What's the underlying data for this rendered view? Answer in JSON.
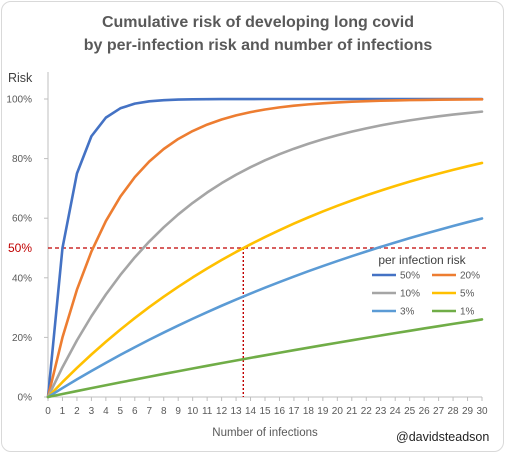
{
  "chart_data": {
    "type": "line",
    "title_lines": [
      "Cumulative risk of developing long covid",
      "by per-infection risk and number of infections"
    ],
    "xlabel": "Number of infections",
    "ylabel": "Risk",
    "x": [
      0,
      1,
      2,
      3,
      4,
      5,
      6,
      7,
      8,
      9,
      10,
      11,
      12,
      13,
      14,
      15,
      16,
      17,
      18,
      19,
      20,
      21,
      22,
      23,
      24,
      25,
      26,
      27,
      28,
      29,
      30
    ],
    "xlim": [
      0,
      30
    ],
    "ylim": [
      0,
      100
    ],
    "x_ticks": [
      "0",
      "1",
      "2",
      "3",
      "4",
      "5",
      "6",
      "7",
      "8",
      "9",
      "10",
      "11",
      "12",
      "13",
      "14",
      "15",
      "16",
      "17",
      "18",
      "19",
      "20",
      "21",
      "22",
      "23",
      "24",
      "25",
      "26",
      "27",
      "28",
      "29",
      "30"
    ],
    "y_ticks": [
      {
        "value": 0,
        "label": "0%"
      },
      {
        "value": 20,
        "label": "20%"
      },
      {
        "value": 40,
        "label": "40%"
      },
      {
        "value": 60,
        "label": "60%"
      },
      {
        "value": 80,
        "label": "80%"
      },
      {
        "value": 100,
        "label": "100%"
      }
    ],
    "series": [
      {
        "name": "50%",
        "color": "#4472C4",
        "values": [
          0,
          50,
          75,
          87.5,
          93.75,
          96.88,
          98.44,
          99.22,
          99.61,
          99.8,
          99.9,
          99.95,
          99.98,
          99.99,
          99.99,
          100,
          100,
          100,
          100,
          100,
          100,
          100,
          100,
          100,
          100,
          100,
          100,
          100,
          100,
          100,
          100
        ]
      },
      {
        "name": "20%",
        "color": "#ED7D31",
        "values": [
          0,
          20,
          36,
          48.8,
          59.04,
          67.23,
          73.79,
          79.03,
          83.22,
          86.58,
          89.26,
          91.41,
          93.13,
          94.5,
          95.6,
          96.48,
          97.19,
          97.75,
          98.2,
          98.56,
          98.85,
          99.08,
          99.26,
          99.41,
          99.53,
          99.62,
          99.7,
          99.76,
          99.81,
          99.85,
          99.88
        ]
      },
      {
        "name": "10%",
        "color": "#A5A5A5",
        "values": [
          0,
          10,
          19,
          27.1,
          34.39,
          40.95,
          46.86,
          52.17,
          56.95,
          61.26,
          65.13,
          68.62,
          71.76,
          74.58,
          77.12,
          79.41,
          81.47,
          83.32,
          84.99,
          86.49,
          87.84,
          89.06,
          90.15,
          91.14,
          92.02,
          92.82,
          93.54,
          94.19,
          94.77,
          95.29,
          95.76
        ]
      },
      {
        "name": "5%",
        "color": "#FFC000",
        "values": [
          0,
          5,
          9.75,
          14.26,
          18.55,
          22.62,
          26.49,
          30.17,
          33.66,
          36.98,
          40.13,
          43.12,
          45.96,
          48.67,
          51.23,
          53.67,
          55.99,
          58.19,
          60.28,
          62.26,
          64.15,
          65.94,
          67.65,
          69.26,
          70.8,
          72.26,
          73.65,
          74.97,
          76.22,
          77.41,
          78.54
        ]
      },
      {
        "name": "3%",
        "color": "#5B9BD5",
        "values": [
          0,
          3,
          5.91,
          8.73,
          11.47,
          14.13,
          16.7,
          19.2,
          21.63,
          23.98,
          26.26,
          28.47,
          30.62,
          32.7,
          34.72,
          36.67,
          38.57,
          40.42,
          42.21,
          43.94,
          45.62,
          47.25,
          48.83,
          50.37,
          51.86,
          53.3,
          54.7,
          56.06,
          57.38,
          58.66,
          59.9
        ]
      },
      {
        "name": "1%",
        "color": "#70AD47",
        "values": [
          0,
          1,
          1.99,
          2.97,
          3.94,
          4.9,
          5.85,
          6.79,
          7.73,
          8.65,
          9.56,
          10.47,
          11.36,
          12.25,
          13.13,
          13.99,
          14.85,
          15.71,
          16.55,
          17.38,
          18.21,
          19.03,
          19.84,
          20.64,
          21.43,
          22.22,
          23,
          23.77,
          24.53,
          25.28,
          26.03
        ]
      }
    ],
    "reference_line": {
      "value": 50,
      "label": "50%",
      "color": "#C00000"
    },
    "reference_vline": {
      "x": 13.5
    },
    "legend": {
      "title": "per infection risk",
      "placement": "right",
      "columns": 2
    },
    "grid": false,
    "annotation": "@davidsteadson"
  }
}
